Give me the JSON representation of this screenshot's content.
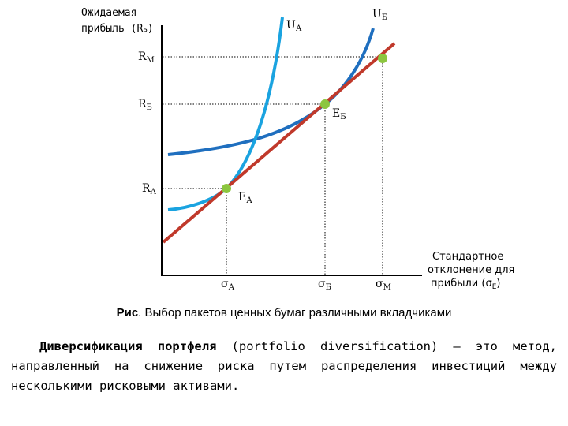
{
  "figure": {
    "y_axis_label_line1": "Ожидаемая",
    "y_axis_label_line2_pre": "прибыль (R",
    "y_axis_label_line2_sub": "P",
    "y_axis_label_line2_post": ")",
    "x_axis_label_line1": "Стандартное",
    "x_axis_label_line2": "отклонение для",
    "x_axis_label_line3_pre": "прибыли (σ",
    "x_axis_label_line3_sub": "E",
    "x_axis_label_line3_post": ")",
    "r_m": {
      "main": "R",
      "sub": "М"
    },
    "r_b": {
      "main": "R",
      "sub": "Б"
    },
    "r_a": {
      "main": "R",
      "sub": "А"
    },
    "u_a": {
      "main": "U",
      "sub": "А"
    },
    "u_b": {
      "main": "U",
      "sub": "Б"
    },
    "e_b": {
      "main": "E",
      "sub": "Б"
    },
    "e_a": {
      "main": "E",
      "sub": "А"
    },
    "sigma_a": {
      "main": "σ",
      "sub": "А"
    },
    "sigma_b": {
      "main": "σ",
      "sub": "Б"
    },
    "sigma_m": {
      "main": "σ",
      "sub": "М"
    },
    "colors": {
      "market_line": "#c0392b",
      "curve_ua": "#1aa3e0",
      "curve_ub": "#1f6fbf",
      "points": "#8cc63f"
    }
  },
  "caption": {
    "bold": "Рис",
    "text": ". Выбор пакетов ценных бумаг различными вкладчиками"
  },
  "paragraph": {
    "term": "Диверсификация портфеля",
    "text": " (portfolio diversification) — это метод, направленный на снижение риска путем распределения инвестиций между несколькими рисковыми активами."
  }
}
